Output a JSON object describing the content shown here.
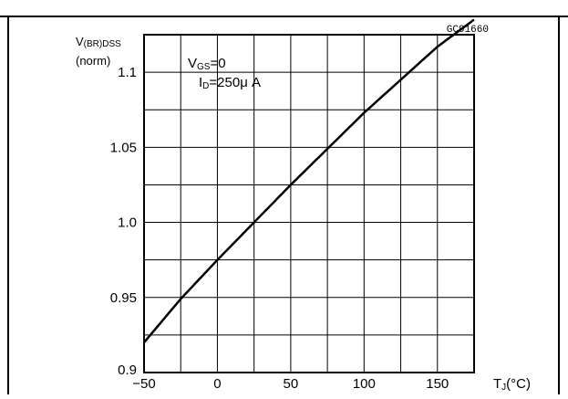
{
  "chart_data": {
    "type": "line",
    "code": "GC91660",
    "ylabel_main": "V",
    "ylabel_sub": "(BR)DSS",
    "ylabel_unit": "(norm)",
    "xlabel_main": "T",
    "xlabel_sub": "J",
    "xlabel_unit": "(°C)",
    "annotation": {
      "line1_main": "V",
      "line1_sub": "GS",
      "line1_val": "=0",
      "line2_main": "I",
      "line2_sub": "D",
      "line2_val": "=250μ A"
    },
    "xlim": [
      -50,
      175
    ],
    "ylim": [
      0.9,
      1.125
    ],
    "x_ticks": [
      -50,
      0,
      50,
      100,
      150
    ],
    "x_tick_labels": [
      "−50",
      "0",
      "50",
      "100",
      "150"
    ],
    "y_ticks": [
      0.9,
      0.95,
      1.0,
      1.05,
      1.1
    ],
    "y_tick_labels": [
      "0.9",
      "0.95",
      "1.0",
      "1.05",
      "1.1"
    ],
    "grid": true,
    "series": [
      {
        "x": [
          -50,
          -25,
          0,
          25,
          50,
          75,
          100,
          125,
          150,
          175
        ],
        "y": [
          0.92,
          0.949,
          0.975,
          1.0,
          1.025,
          1.049,
          1.073,
          1.095,
          1.117,
          1.135
        ]
      }
    ]
  }
}
